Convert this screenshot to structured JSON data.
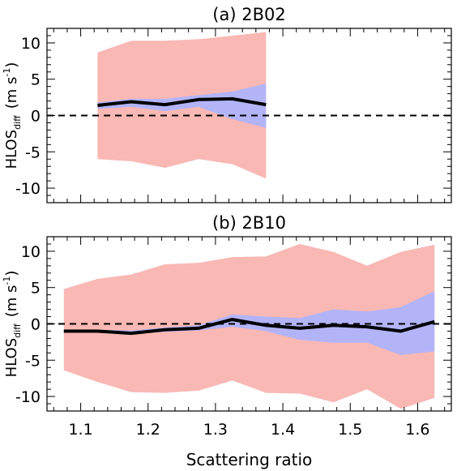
{
  "chart_data": [
    {
      "type": "area",
      "title": "(a)  2B02",
      "xlabel": "",
      "ylabel": "HLOS",
      "ylabel_sub": "diff",
      "ylabel_unit_pre": "(m s",
      "ylabel_unit_sup": "-1",
      "ylabel_unit_post": ")",
      "xlim": [
        1.05,
        1.65
      ],
      "ylim": [
        -12,
        12
      ],
      "yticks": [
        -10,
        -5,
        0,
        5,
        10
      ],
      "xticks": [
        1.1,
        1.2,
        1.3,
        1.4,
        1.5,
        1.6
      ],
      "x_tick_labels_shown": false,
      "zero_line": "dashed",
      "x": [
        1.125,
        1.175,
        1.225,
        1.275,
        1.325,
        1.375
      ],
      "series": [
        {
          "role": "outer_band",
          "color": "#f9b8b4",
          "upper": [
            8.7,
            10.3,
            10.3,
            10.5,
            11.0,
            11.5
          ],
          "lower": [
            -6.0,
            -6.3,
            -7.2,
            -6.0,
            -6.7,
            -8.7
          ]
        },
        {
          "role": "inner_band",
          "color": "#b3b4f8",
          "upper": [
            1.8,
            2.3,
            2.3,
            2.8,
            3.3,
            4.4
          ],
          "lower": [
            0.9,
            1.2,
            0.6,
            1.2,
            -0.5,
            -1.7
          ]
        },
        {
          "role": "mean",
          "color": "#000000",
          "values": [
            1.4,
            1.9,
            1.5,
            2.2,
            2.3,
            1.5
          ]
        }
      ]
    },
    {
      "type": "area",
      "title": "(b)  2B10",
      "xlabel": "Scattering ratio",
      "ylabel": "HLOS",
      "ylabel_sub": "diff",
      "ylabel_unit_pre": "(m s",
      "ylabel_unit_sup": "-1",
      "ylabel_unit_post": ")",
      "xlim": [
        1.05,
        1.65
      ],
      "ylim": [
        -12,
        12
      ],
      "yticks": [
        -10,
        -5,
        0,
        5,
        10
      ],
      "xticks": [
        1.1,
        1.2,
        1.3,
        1.4,
        1.5,
        1.6
      ],
      "x_tick_labels_shown": true,
      "zero_line": "dashed",
      "x": [
        1.075,
        1.125,
        1.175,
        1.225,
        1.275,
        1.325,
        1.375,
        1.425,
        1.475,
        1.525,
        1.575,
        1.625
      ],
      "series": [
        {
          "role": "outer_band",
          "color": "#f9b8b4",
          "upper": [
            4.8,
            6.2,
            6.8,
            8.2,
            8.4,
            9.2,
            9.3,
            11.0,
            9.9,
            8.0,
            9.9,
            10.9
          ],
          "lower": [
            -6.4,
            -8.0,
            -9.4,
            -9.5,
            -9.2,
            -7.8,
            -9.5,
            -9.6,
            -10.8,
            -9.0,
            -11.7,
            -10.2
          ]
        },
        {
          "role": "inner_band",
          "color": "#b3b4f8",
          "upper": [
            -0.8,
            -0.8,
            -0.9,
            -0.5,
            -0.2,
            1.3,
            1.0,
            0.8,
            2.0,
            1.7,
            2.3,
            4.5
          ],
          "lower": [
            -1.1,
            -1.1,
            -1.4,
            -1.1,
            -0.9,
            -0.4,
            -1.0,
            -2.2,
            -2.6,
            -2.6,
            -4.3,
            -3.8
          ]
        },
        {
          "role": "mean",
          "color": "#000000",
          "values": [
            -1.0,
            -1.0,
            -1.3,
            -0.8,
            -0.6,
            0.6,
            -0.2,
            -0.6,
            -0.2,
            -0.4,
            -1.0,
            0.3
          ]
        }
      ]
    }
  ]
}
